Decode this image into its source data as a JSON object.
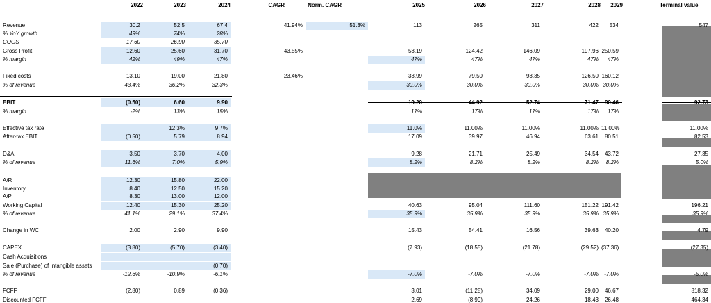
{
  "headers": {
    "years_hist": [
      "2022",
      "2023",
      "2024"
    ],
    "cagr": "CAGR",
    "norm_cagr": "Norm. CAGR",
    "years_proj": [
      "2025",
      "2026",
      "2027",
      "2028",
      "2029"
    ],
    "terminal": "Terminal value"
  },
  "rows": [
    {
      "label": "Revenue",
      "italic": false,
      "bold": false,
      "hist": [
        "30.2",
        "52.5",
        "67.4"
      ],
      "cagr": "41.94%",
      "norm": "51.3%",
      "proj": [
        "113",
        "265",
        "311",
        "422",
        "534"
      ],
      "tv": "547"
    },
    {
      "label": "% YoY growth",
      "italic": true,
      "bold": false,
      "hist": [
        "49%",
        "74%",
        "28%"
      ],
      "cagr": "",
      "norm": "",
      "proj": [
        "",
        "",
        "",
        "",
        ""
      ],
      "tv": ""
    },
    {
      "label": "COGS",
      "italic": true,
      "bold": false,
      "hist": [
        "17.60",
        "26.90",
        "35.70"
      ],
      "cagr": "",
      "norm": "",
      "proj": [
        "",
        "",
        "",
        "",
        ""
      ],
      "tv": ""
    },
    {
      "label": "Gross Profit",
      "italic": false,
      "bold": false,
      "hist": [
        "12.60",
        "25.60",
        "31.70"
      ],
      "cagr": "43.55%",
      "norm": "",
      "proj": [
        "53.19",
        "124.42",
        "146.09",
        "197.96",
        "250.59"
      ],
      "tv": ""
    },
    {
      "label": "% margin",
      "italic": true,
      "bold": false,
      "hist": [
        "42%",
        "49%",
        "47%"
      ],
      "cagr": "",
      "norm": "",
      "proj": [
        "47%",
        "47%",
        "47%",
        "47%",
        "47%"
      ],
      "tv": ""
    },
    {
      "label": "Fixed costs",
      "italic": false,
      "bold": false,
      "hist": [
        "13.10",
        "19.00",
        "21.80"
      ],
      "cagr": "23.46%",
      "norm": "",
      "proj": [
        "33.99",
        "79.50",
        "93.35",
        "126.50",
        "160.12"
      ],
      "tv": ""
    },
    {
      "label": "% of revenue",
      "italic": true,
      "bold": false,
      "hist": [
        "43.4%",
        "36.2%",
        "32.3%"
      ],
      "cagr": "",
      "norm": "",
      "proj": [
        "30.0%",
        "30.0%",
        "30.0%",
        "30.0%",
        "30.0%"
      ],
      "tv": ""
    },
    {
      "label": "EBIT",
      "italic": false,
      "bold": true,
      "hist": [
        "(0.50)",
        "6.60",
        "9.90"
      ],
      "cagr": "",
      "norm": "",
      "proj": [
        "19.20",
        "44.92",
        "52.74",
        "71.47",
        "90.46"
      ],
      "tv": "92.73"
    },
    {
      "label": "% margin",
      "italic": true,
      "bold": false,
      "hist": [
        "-2%",
        "13%",
        "15%"
      ],
      "cagr": "",
      "norm": "",
      "proj": [
        "17%",
        "17%",
        "17%",
        "17%",
        "17%"
      ],
      "tv": ""
    },
    {
      "label": "Effective tax rate",
      "italic": false,
      "bold": false,
      "hist": [
        "",
        "12.3%",
        "9.7%"
      ],
      "cagr": "",
      "norm": "",
      "proj": [
        "11.0%",
        "11.00%",
        "11.00%",
        "11.00%",
        "11.00%"
      ],
      "tv": "11.00%"
    },
    {
      "label": "After-tax EBIT",
      "italic": false,
      "bold": false,
      "hist": [
        "(0.50)",
        "5.79",
        "8.94"
      ],
      "cagr": "",
      "norm": "",
      "proj": [
        "17.09",
        "39.97",
        "46.94",
        "63.61",
        "80.51"
      ],
      "tv": "82.53"
    },
    {
      "label": "D&A",
      "italic": false,
      "bold": false,
      "hist": [
        "3.50",
        "3.70",
        "4.00"
      ],
      "cagr": "",
      "norm": "",
      "proj": [
        "9.28",
        "21.71",
        "25.49",
        "34.54",
        "43.72"
      ],
      "tv": "27.35"
    },
    {
      "label": "% of revenue",
      "italic": true,
      "bold": false,
      "hist": [
        "11.6%",
        "7.0%",
        "5.9%"
      ],
      "cagr": "",
      "norm": "",
      "proj": [
        "8.2%",
        "8.2%",
        "8.2%",
        "8.2%",
        "8.2%"
      ],
      "tv": "5.0%"
    },
    {
      "label": "A/R",
      "italic": false,
      "bold": false,
      "hist": [
        "12.30",
        "15.80",
        "22.00"
      ],
      "cagr": "",
      "norm": "",
      "proj": [
        "",
        "",
        "",
        "",
        ""
      ],
      "tv": ""
    },
    {
      "label": "Inventory",
      "italic": false,
      "bold": false,
      "hist": [
        "8.40",
        "12.50",
        "15.20"
      ],
      "cagr": "",
      "norm": "",
      "proj": [
        "",
        "",
        "",
        "",
        ""
      ],
      "tv": ""
    },
    {
      "label": "A/P",
      "italic": false,
      "bold": false,
      "hist": [
        "8.30",
        "13.00",
        "12.00"
      ],
      "cagr": "",
      "norm": "",
      "proj": [
        "",
        "",
        "",
        "",
        ""
      ],
      "tv": ""
    },
    {
      "label": "Working Capital",
      "italic": false,
      "bold": false,
      "hist": [
        "12.40",
        "15.30",
        "25.20"
      ],
      "cagr": "",
      "norm": "",
      "proj": [
        "40.63",
        "95.04",
        "111.60",
        "151.22",
        "191.42"
      ],
      "tv": "196.21"
    },
    {
      "label": "% of revenue",
      "italic": true,
      "bold": false,
      "hist": [
        "41.1%",
        "29.1%",
        "37.4%"
      ],
      "cagr": "",
      "norm": "",
      "proj": [
        "35.9%",
        "35.9%",
        "35.9%",
        "35.9%",
        "35.9%"
      ],
      "tv": "35.9%"
    },
    {
      "label": "Change in WC",
      "italic": false,
      "bold": false,
      "hist": [
        "2.00",
        "2.90",
        "9.90"
      ],
      "cagr": "",
      "norm": "",
      "proj": [
        "15.43",
        "54.41",
        "16.56",
        "39.63",
        "40.20"
      ],
      "tv": "4.79"
    },
    {
      "label": "CAPEX",
      "italic": false,
      "bold": false,
      "hist": [
        "(3.80)",
        "(5.70)",
        "(3.40)"
      ],
      "cagr": "",
      "norm": "",
      "proj": [
        "(7.93)",
        "(18.55)",
        "(21.78)",
        "(29.52)",
        "(37.36)"
      ],
      "tv": "(27.35)"
    },
    {
      "label": "Cash Acquisitions",
      "italic": false,
      "bold": false,
      "hist": [
        "",
        "",
        ""
      ],
      "cagr": "",
      "norm": "",
      "proj": [
        "",
        "",
        "",
        "",
        ""
      ],
      "tv": ""
    },
    {
      "label": "Sale (Purchase) of Intangible assets",
      "italic": false,
      "bold": false,
      "hist": [
        "",
        "",
        "(0.70)"
      ],
      "cagr": "",
      "norm": "",
      "proj": [
        "",
        "",
        "",
        "",
        ""
      ],
      "tv": ""
    },
    {
      "label": "% of revenue",
      "italic": true,
      "bold": false,
      "hist": [
        "-12.6%",
        "-10.9%",
        "-6.1%"
      ],
      "cagr": "",
      "norm": "",
      "proj": [
        "-7.0%",
        "-7.0%",
        "-7.0%",
        "-7.0%",
        "-7.0%"
      ],
      "tv": "-5.0%"
    },
    {
      "label": "FCFF",
      "italic": false,
      "bold": false,
      "hist": [
        "(2.80)",
        "0.89",
        "(0.36)"
      ],
      "cagr": "",
      "norm": "",
      "proj": [
        "3.01",
        "(11.28)",
        "34.09",
        "29.00",
        "46.67"
      ],
      "tv": "818.32"
    },
    {
      "label": "Discounted FCFF",
      "italic": false,
      "bold": false,
      "hist": [
        "",
        "",
        ""
      ],
      "cagr": "",
      "norm": "",
      "proj": [
        "2.69",
        "(8.99)",
        "24.26",
        "18.43",
        "26.48"
      ],
      "tv": "464.34"
    }
  ],
  "colors": {
    "input_fill": "#d9e8f7",
    "gray_fill": "#808080"
  }
}
